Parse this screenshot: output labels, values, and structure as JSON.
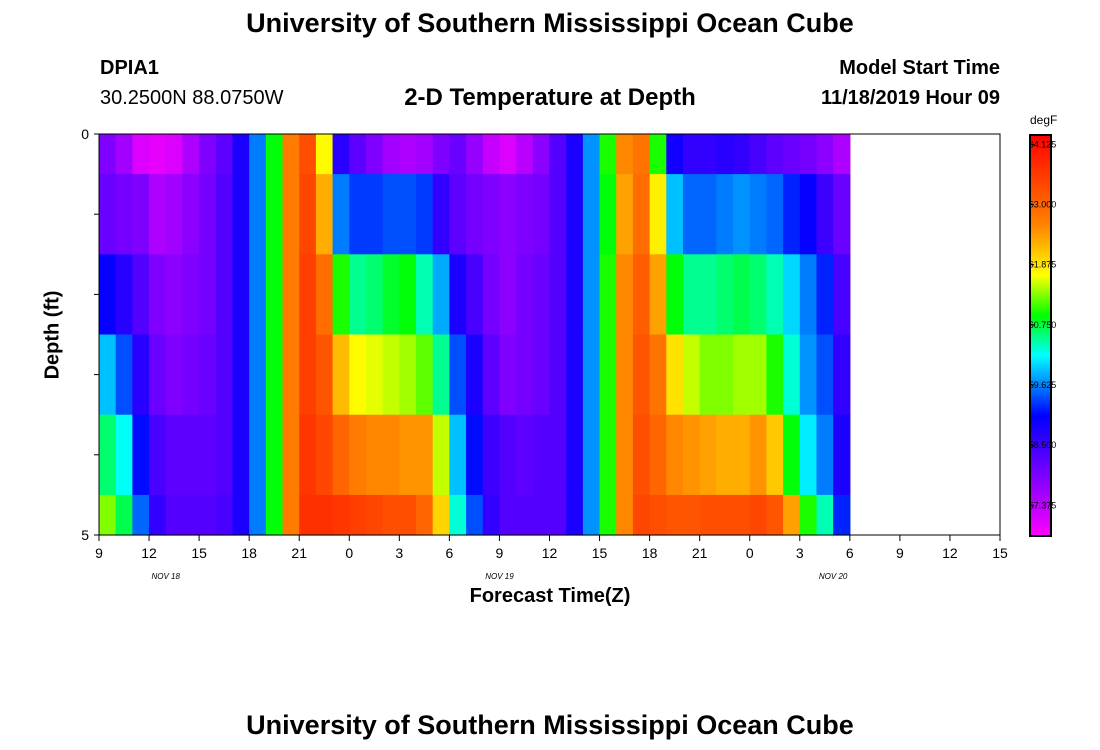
{
  "header": {
    "title": "University of Southern Mississippi Ocean Cube",
    "station_id": "DPIA1",
    "coordinates": "30.2500N 88.0750W",
    "plot_title": "2-D Temperature at Depth",
    "model_start_label": "Model Start Time",
    "model_start_value": "11/18/2019 Hour 09"
  },
  "footer": {
    "title": "University of Southern Mississippi Ocean Cube"
  },
  "chart_data": {
    "type": "heatmap",
    "title": "2-D Temperature at Depth",
    "xlabel": "Forecast Time(Z)",
    "ylabel": "Depth (ft)",
    "x_unit": "hours from 11/18/2019 09Z",
    "xlim": [
      0,
      54
    ],
    "ylim": [
      0,
      5
    ],
    "y_inverted": true,
    "x_tick_labels": [
      "9",
      "12",
      "15",
      "18",
      "21",
      "0",
      "3",
      "6",
      "9",
      "12",
      "15",
      "18",
      "21",
      "0",
      "3",
      "6",
      "9",
      "12",
      "15"
    ],
    "y_tick_labels": [
      "0",
      "5"
    ],
    "date_labels": [
      "NOV 18",
      "NOV 19",
      "NOV 20"
    ],
    "colorbar": {
      "unit": "degF",
      "min": 56.8,
      "max": 64.3,
      "tick_values": [
        "64.125",
        "63.000",
        "61.875",
        "60.750",
        "59.625",
        "58.500",
        "57.375"
      ]
    },
    "depth_layers": [
      {
        "top": 0,
        "bottom": 0.5
      },
      {
        "top": 0.5,
        "bottom": 1.5
      },
      {
        "top": 1.5,
        "bottom": 2.5
      },
      {
        "top": 2.5,
        "bottom": 3.5
      },
      {
        "top": 3.5,
        "bottom": 4.5
      },
      {
        "top": 4.5,
        "bottom": 5
      }
    ],
    "series": [
      {
        "x": 0,
        "values": [
          57.9,
          58.1,
          59.0,
          59.9,
          60.6,
          61.3
        ]
      },
      {
        "x": 1,
        "values": [
          57.6,
          58.0,
          58.7,
          59.4,
          60.2,
          60.7
        ]
      },
      {
        "x": 2,
        "values": [
          57.1,
          57.9,
          58.3,
          58.7,
          59.1,
          59.5
        ]
      },
      {
        "x": 3,
        "values": [
          57.0,
          57.5,
          57.9,
          58.1,
          58.4,
          58.6
        ]
      },
      {
        "x": 4,
        "values": [
          57.1,
          57.6,
          57.8,
          57.9,
          58.2,
          58.3
        ]
      },
      {
        "x": 5,
        "values": [
          57.5,
          57.8,
          57.9,
          58.0,
          58.2,
          58.3
        ]
      },
      {
        "x": 6,
        "values": [
          57.9,
          58.0,
          58.0,
          58.1,
          58.2,
          58.3
        ]
      },
      {
        "x": 7,
        "values": [
          58.2,
          58.3,
          58.3,
          58.3,
          58.3,
          58.4
        ]
      },
      {
        "x": 8,
        "values": [
          58.8,
          58.8,
          58.8,
          58.8,
          58.8,
          58.8
        ]
      },
      {
        "x": 9,
        "values": [
          59.6,
          59.6,
          59.6,
          59.6,
          59.6,
          59.6
        ]
      },
      {
        "x": 10,
        "values": [
          60.9,
          60.9,
          60.9,
          60.9,
          60.9,
          60.9
        ]
      },
      {
        "x": 11,
        "values": [
          62.7,
          62.7,
          62.7,
          62.7,
          62.7,
          62.7
        ]
      },
      {
        "x": 12,
        "values": [
          63.3,
          63.4,
          63.5,
          63.5,
          63.6,
          63.7
        ]
      },
      {
        "x": 13,
        "values": [
          61.7,
          62.3,
          62.9,
          63.2,
          63.4,
          63.7
        ]
      },
      {
        "x": 14,
        "values": [
          58.7,
          59.6,
          61.0,
          62.2,
          63.0,
          63.6
        ]
      },
      {
        "x": 15,
        "values": [
          58.2,
          59.3,
          60.5,
          61.7,
          62.7,
          63.5
        ]
      },
      {
        "x": 16,
        "values": [
          57.9,
          59.3,
          60.6,
          61.6,
          62.6,
          63.4
        ]
      },
      {
        "x": 17,
        "values": [
          57.6,
          59.4,
          60.8,
          61.5,
          62.6,
          63.3
        ]
      },
      {
        "x": 18,
        "values": [
          57.5,
          59.4,
          60.9,
          61.4,
          62.5,
          63.3
        ]
      },
      {
        "x": 19,
        "values": [
          57.6,
          59.3,
          60.4,
          61.2,
          62.5,
          63.0
        ]
      },
      {
        "x": 20,
        "values": [
          57.9,
          58.6,
          59.8,
          60.5,
          61.5,
          62.0
        ]
      },
      {
        "x": 21,
        "values": [
          58.1,
          58.2,
          58.8,
          59.4,
          59.9,
          60.3
        ]
      },
      {
        "x": 22,
        "values": [
          57.7,
          58.0,
          58.4,
          58.8,
          59.1,
          59.4
        ]
      },
      {
        "x": 23,
        "values": [
          57.3,
          57.9,
          58.0,
          58.2,
          58.5,
          58.6
        ]
      },
      {
        "x": 24,
        "values": [
          57.1,
          57.8,
          57.8,
          57.9,
          58.3,
          58.3
        ]
      },
      {
        "x": 25,
        "values": [
          57.4,
          57.9,
          58.0,
          58.0,
          58.2,
          58.3
        ]
      },
      {
        "x": 26,
        "values": [
          57.8,
          58.0,
          58.1,
          58.1,
          58.3,
          58.3
        ]
      },
      {
        "x": 27,
        "values": [
          58.3,
          58.3,
          58.3,
          58.3,
          58.3,
          58.3
        ]
      },
      {
        "x": 28,
        "values": [
          58.8,
          58.8,
          58.8,
          58.8,
          58.8,
          58.8
        ]
      },
      {
        "x": 29,
        "values": [
          59.7,
          59.7,
          59.7,
          59.7,
          59.7,
          59.7
        ]
      },
      {
        "x": 30,
        "values": [
          61.0,
          60.9,
          61.0,
          61.0,
          61.0,
          61.0
        ]
      },
      {
        "x": 31,
        "values": [
          62.6,
          62.4,
          62.6,
          62.6,
          62.6,
          62.6
        ]
      },
      {
        "x": 32,
        "values": [
          62.8,
          62.9,
          63.1,
          63.2,
          63.3,
          63.4
        ]
      },
      {
        "x": 33,
        "values": [
          61.0,
          61.8,
          62.4,
          62.8,
          63.0,
          63.3
        ]
      },
      {
        "x": 34,
        "values": [
          58.9,
          59.9,
          60.9,
          61.9,
          62.6,
          63.2
        ]
      },
      {
        "x": 35,
        "values": [
          58.6,
          59.5,
          60.5,
          61.5,
          62.5,
          63.2
        ]
      },
      {
        "x": 36,
        "values": [
          58.6,
          59.5,
          60.5,
          61.3,
          62.4,
          63.3
        ]
      },
      {
        "x": 37,
        "values": [
          58.7,
          59.6,
          60.6,
          61.3,
          62.3,
          63.3
        ]
      },
      {
        "x": 38,
        "values": [
          58.6,
          59.7,
          60.7,
          61.4,
          62.3,
          63.3
        ]
      },
      {
        "x": 39,
        "values": [
          58.4,
          59.6,
          60.6,
          61.4,
          62.5,
          63.4
        ]
      },
      {
        "x": 40,
        "values": [
          58.2,
          59.5,
          60.4,
          61.0,
          62.1,
          63.2
        ]
      },
      {
        "x": 41,
        "values": [
          58.1,
          59.2,
          60.0,
          60.3,
          60.9,
          62.4
        ]
      },
      {
        "x": 42,
        "values": [
          58.0,
          59.0,
          59.6,
          59.7,
          60.1,
          61.0
        ]
      },
      {
        "x": 43,
        "values": [
          57.8,
          58.5,
          59.2,
          59.4,
          59.6,
          60.4
        ]
      },
      {
        "x": 44,
        "values": [
          57.5,
          58.1,
          58.4,
          58.6,
          58.8,
          59.2
        ]
      }
    ]
  }
}
